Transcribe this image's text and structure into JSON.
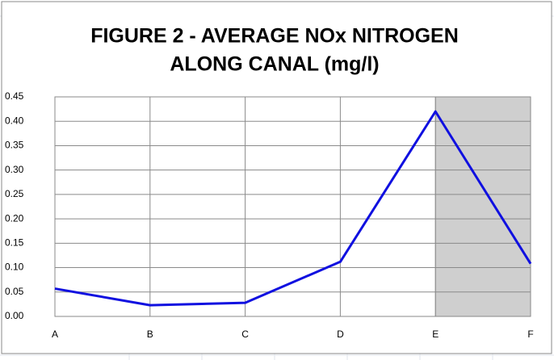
{
  "chart_data": {
    "type": "line",
    "title": [
      "FIGURE 2 - AVERAGE NOx NITROGEN",
      "ALONG CANAL (mg/l)"
    ],
    "categories": [
      "A",
      "B",
      "C",
      "D",
      "E",
      "F"
    ],
    "series": [
      {
        "name": "Average NOx nitrogen",
        "color": "#1010e0",
        "values": [
          0.057,
          0.023,
          0.028,
          0.112,
          0.42,
          0.108
        ]
      }
    ],
    "ylim": [
      0,
      0.45
    ],
    "yticks": [
      {
        "value": 0,
        "label": "0.00"
      },
      {
        "value": 0.05,
        "label": "0.05"
      },
      {
        "value": 0.1,
        "label": "0.10"
      },
      {
        "value": 0.15,
        "label": "0.15"
      },
      {
        "value": 0.2,
        "label": "0.20"
      },
      {
        "value": 0.25,
        "label": "0.25"
      },
      {
        "value": 0.3,
        "label": "0.30"
      },
      {
        "value": 0.35,
        "label": "0.35"
      },
      {
        "value": 0.4,
        "label": "0.40"
      },
      {
        "value": 0.45,
        "label": "0.45"
      }
    ],
    "grid": true
  }
}
